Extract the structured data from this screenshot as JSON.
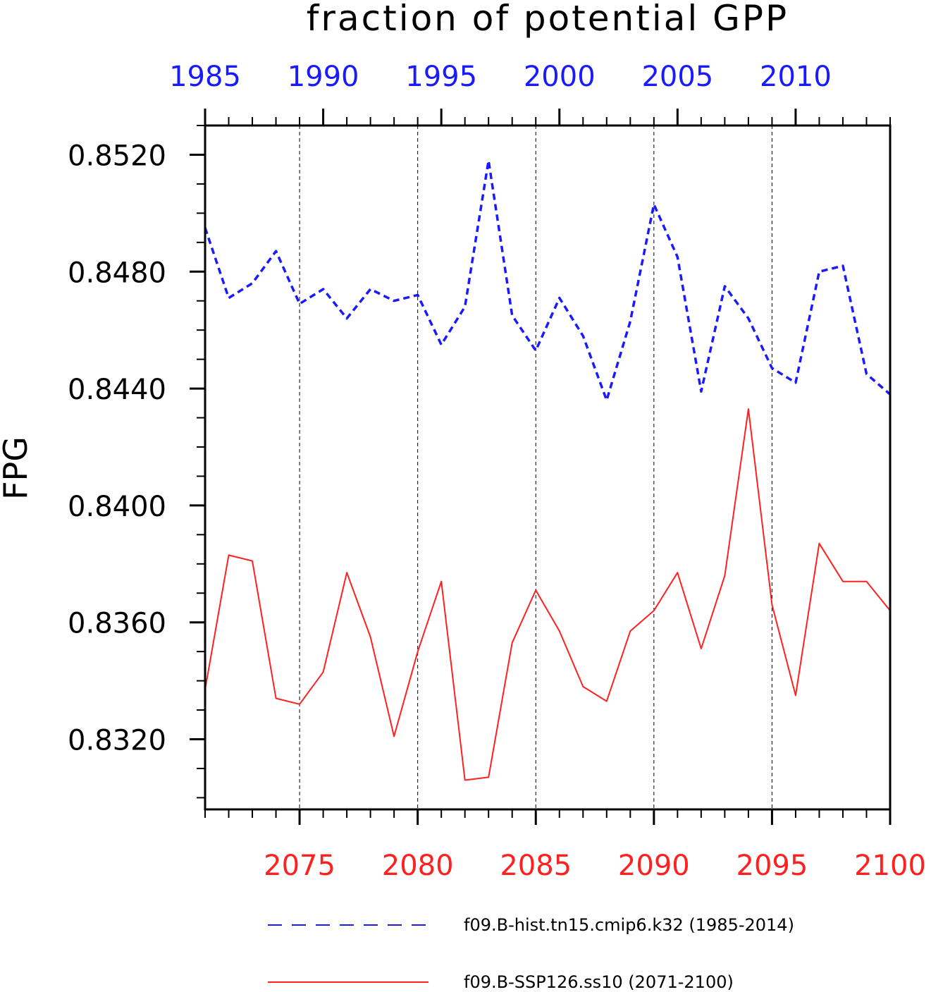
{
  "chart_data": {
    "type": "line",
    "title": "fraction of potential GPP",
    "ylabel": "FPG",
    "ylim": [
      0.8296,
      0.853
    ],
    "yticks": [
      "0.8320",
      "0.8360",
      "0.8400",
      "0.8440",
      "0.8480",
      "0.8520"
    ],
    "grid": "vertical dashed at bottom-axis major ticks",
    "legend_position": "bottom",
    "top_axis": {
      "color": "#1a1aff",
      "range": [
        1985,
        2014
      ],
      "ticks": [
        "1985",
        "1990",
        "1995",
        "2000",
        "2005",
        "2010"
      ]
    },
    "bottom_axis": {
      "color": "#ff2020",
      "range": [
        2071,
        2100
      ],
      "ticks": [
        "2075",
        "2080",
        "2085",
        "2090",
        "2095",
        "2100"
      ]
    },
    "series": [
      {
        "name": "f09.B-hist.tn15.cmip6.k32 (1985-2014)",
        "axis": "top",
        "style": "dashed",
        "color": "#1a1aff",
        "x": [
          1985,
          1986,
          1987,
          1988,
          1989,
          1990,
          1991,
          1992,
          1993,
          1994,
          1995,
          1996,
          1997,
          1998,
          1999,
          2000,
          2001,
          2002,
          2003,
          2004,
          2005,
          2006,
          2007,
          2008,
          2009,
          2010,
          2011,
          2012,
          2013,
          2014
        ],
        "values": [
          0.8495,
          0.8471,
          0.8476,
          0.8487,
          0.8469,
          0.8474,
          0.8464,
          0.8474,
          0.847,
          0.8472,
          0.8455,
          0.8468,
          0.8518,
          0.8465,
          0.8453,
          0.8471,
          0.8458,
          0.8436,
          0.8463,
          0.8503,
          0.8485,
          0.8439,
          0.8475,
          0.8464,
          0.8447,
          0.8442,
          0.848,
          0.8482,
          0.8445,
          0.8438
        ]
      },
      {
        "name": "f09.B-SSP126.ss10 (2071-2100)",
        "axis": "bottom",
        "style": "solid",
        "color": "#ff2020",
        "x": [
          2071,
          2072,
          2073,
          2074,
          2075,
          2076,
          2077,
          2078,
          2079,
          2080,
          2081,
          2082,
          2083,
          2084,
          2085,
          2086,
          2087,
          2088,
          2089,
          2090,
          2091,
          2092,
          2093,
          2094,
          2095,
          2096,
          2097,
          2098,
          2099,
          2100
        ],
        "values": [
          0.8337,
          0.8383,
          0.8381,
          0.8334,
          0.8332,
          0.8343,
          0.8377,
          0.8355,
          0.8321,
          0.835,
          0.8374,
          0.8306,
          0.8307,
          0.8353,
          0.8371,
          0.8357,
          0.8338,
          0.8333,
          0.8357,
          0.8364,
          0.8377,
          0.8351,
          0.8376,
          0.8433,
          0.8366,
          0.8335,
          0.8387,
          0.8374,
          0.8374,
          0.8364
        ]
      }
    ]
  }
}
